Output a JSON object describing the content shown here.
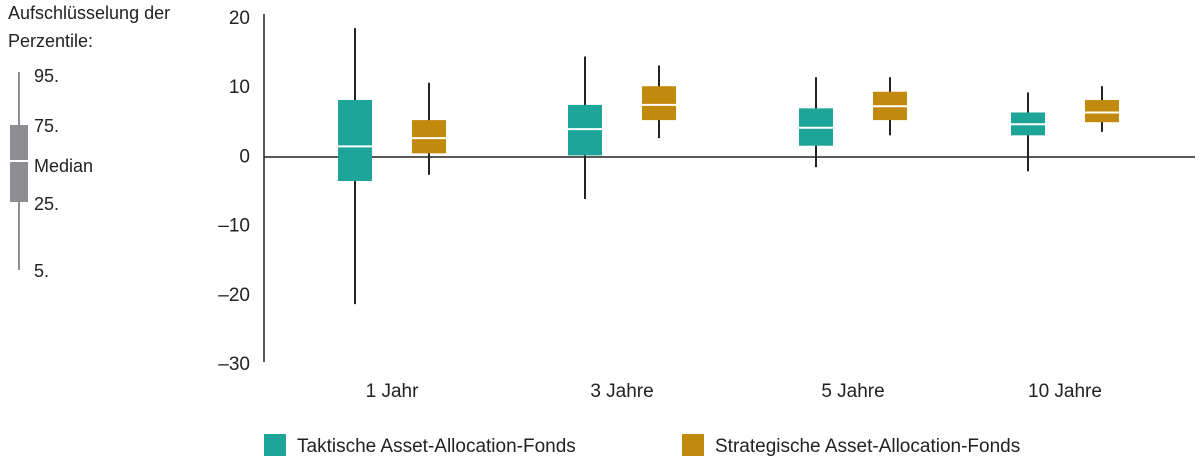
{
  "chart_data": {
    "type": "boxplot",
    "categories": [
      "1 Jahr",
      "3 Jahre",
      "5 Jahre",
      "10 Jahre"
    ],
    "ylim": [
      -30,
      20
    ],
    "yticks": [
      {
        "value": 20,
        "label": "20"
      },
      {
        "value": 10,
        "label": "10"
      },
      {
        "value": 0,
        "label": "0"
      },
      {
        "value": -10,
        "label": "–10"
      },
      {
        "value": -20,
        "label": "–20"
      },
      {
        "value": -30,
        "label": "–30"
      }
    ],
    "series": [
      {
        "name": "Taktische Asset-Allocation-Fonds",
        "color": "#1ea59a",
        "boxes": [
          {
            "p5": -21.5,
            "p25": -3.7,
            "median": 1.3,
            "p75": 8.0,
            "p95": 18.4
          },
          {
            "p5": -6.3,
            "p25": 0.0,
            "median": 3.8,
            "p75": 7.3,
            "p95": 14.3
          },
          {
            "p5": -1.7,
            "p25": 1.4,
            "median": 4.0,
            "p75": 6.8,
            "p95": 11.3
          },
          {
            "p5": -2.3,
            "p25": 2.9,
            "median": 4.5,
            "p75": 6.2,
            "p95": 9.1
          }
        ]
      },
      {
        "name": "Strategische Asset-Allocation-Fonds",
        "color": "#c18a0c",
        "boxes": [
          {
            "p5": -2.8,
            "p25": 0.3,
            "median": 2.5,
            "p75": 5.1,
            "p95": 10.5
          },
          {
            "p5": 2.5,
            "p25": 5.1,
            "median": 7.3,
            "p75": 10.0,
            "p95": 13.0
          },
          {
            "p5": 2.9,
            "p25": 5.1,
            "median": 7.1,
            "p75": 9.2,
            "p95": 11.3
          },
          {
            "p5": 3.4,
            "p25": 4.8,
            "median": 6.2,
            "p75": 8.0,
            "p95": 10.0
          }
        ]
      }
    ],
    "legend_placement": "bottom",
    "grid": false
  },
  "percentile_key": {
    "title_line1": "Aufschlüsselung der",
    "title_line2": "Perzentile:",
    "label_95": "95.",
    "label_75": "75.",
    "label_median": "Median",
    "label_25": "25.",
    "label_5": "5.",
    "color": "#8e8e92"
  }
}
